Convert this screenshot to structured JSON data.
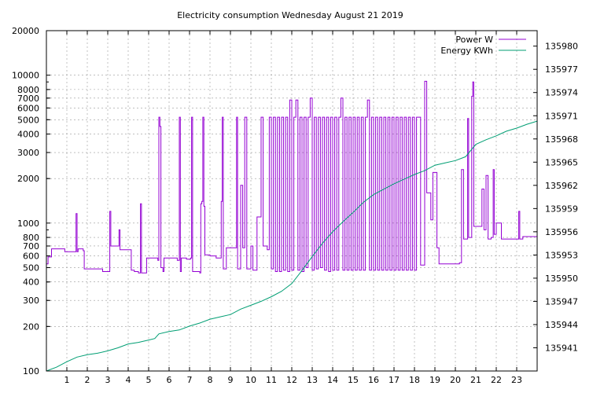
{
  "chart_data": {
    "type": "line",
    "title": "Electricity consumption Wednesday August 21 2019",
    "y_scale": "log",
    "ylim": [
      100,
      20000
    ],
    "y2lim": [
      135938,
      135982
    ],
    "xlim": [
      0,
      24
    ],
    "grid": true,
    "legend_position": "top-right",
    "x_ticks": [
      "1",
      "2",
      "3",
      "4",
      "5",
      "6",
      "7",
      "8",
      "9",
      "10",
      "11",
      "12",
      "13",
      "14",
      "15",
      "16",
      "17",
      "18",
      "19",
      "20",
      "21",
      "22",
      "23"
    ],
    "y_ticks": [
      {
        "v": 100,
        "label": "100"
      },
      {
        "v": 200,
        "label": "200"
      },
      {
        "v": 300,
        "label": "300"
      },
      {
        "v": 400,
        "label": "400"
      },
      {
        "v": 500,
        "label": "500"
      },
      {
        "v": 600,
        "label": "600"
      },
      {
        "v": 700,
        "label": "700"
      },
      {
        "v": 800,
        "label": "800"
      },
      {
        "v": 1000,
        "label": "1000"
      },
      {
        "v": 2000,
        "label": "2000"
      },
      {
        "v": 3000,
        "label": "3000"
      },
      {
        "v": 4000,
        "label": "4000"
      },
      {
        "v": 5000,
        "label": "5000"
      },
      {
        "v": 6000,
        "label": "6000"
      },
      {
        "v": 7000,
        "label": "7000"
      },
      {
        "v": 8000,
        "label": "8000"
      },
      {
        "v": 10000,
        "label": "10000"
      },
      {
        "v": 20000,
        "label": "20000"
      }
    ],
    "y2_ticks": [
      135941,
      135944,
      135947,
      135950,
      135953,
      135956,
      135959,
      135962,
      135965,
      135968,
      135971,
      135974,
      135977,
      135980
    ],
    "series": [
      {
        "name": "Power W",
        "color": "#9400d3",
        "axis": "y1",
        "points": [
          [
            0,
            530
          ],
          [
            0.08,
            590
          ],
          [
            0.25,
            670
          ],
          [
            0.9,
            640
          ],
          [
            1.3,
            640
          ],
          [
            1.45,
            1160
          ],
          [
            1.5,
            640
          ],
          [
            1.55,
            670
          ],
          [
            1.8,
            650
          ],
          [
            1.85,
            490
          ],
          [
            2.5,
            490
          ],
          [
            2.75,
            470
          ],
          [
            3.05,
            470
          ],
          [
            3.1,
            1200
          ],
          [
            3.15,
            700
          ],
          [
            3.3,
            700
          ],
          [
            3.55,
            900
          ],
          [
            3.6,
            660
          ],
          [
            4.05,
            660
          ],
          [
            4.15,
            480
          ],
          [
            4.3,
            470
          ],
          [
            4.5,
            460
          ],
          [
            4.6,
            1350
          ],
          [
            4.65,
            460
          ],
          [
            4.85,
            460
          ],
          [
            4.9,
            580
          ],
          [
            5.3,
            580
          ],
          [
            5.45,
            560
          ],
          [
            5.5,
            5200
          ],
          [
            5.55,
            4500
          ],
          [
            5.6,
            500
          ],
          [
            5.7,
            470
          ],
          [
            5.75,
            580
          ],
          [
            6.2,
            580
          ],
          [
            6.4,
            560
          ],
          [
            6.5,
            5200
          ],
          [
            6.55,
            470
          ],
          [
            6.6,
            580
          ],
          [
            6.85,
            570
          ],
          [
            7.05,
            580
          ],
          [
            7.1,
            5200
          ],
          [
            7.15,
            470
          ],
          [
            7.5,
            460
          ],
          [
            7.55,
            1350
          ],
          [
            7.6,
            1400
          ],
          [
            7.65,
            5200
          ],
          [
            7.7,
            1300
          ],
          [
            7.75,
            610
          ],
          [
            8.0,
            600
          ],
          [
            8.3,
            580
          ],
          [
            8.55,
            1400
          ],
          [
            8.6,
            5200
          ],
          [
            8.65,
            490
          ],
          [
            8.8,
            680
          ],
          [
            9.0,
            680
          ],
          [
            9.3,
            5200
          ],
          [
            9.35,
            490
          ],
          [
            9.5,
            1800
          ],
          [
            9.6,
            680
          ],
          [
            9.7,
            5200
          ],
          [
            9.8,
            490
          ],
          [
            10.0,
            700
          ],
          [
            10.1,
            480
          ],
          [
            10.3,
            1100
          ],
          [
            10.5,
            5200
          ],
          [
            10.6,
            700
          ],
          [
            10.8,
            660
          ],
          [
            10.9,
            5200
          ],
          [
            11.0,
            490
          ],
          [
            11.1,
            5200
          ],
          [
            11.2,
            470
          ],
          [
            11.3,
            5200
          ],
          [
            11.4,
            470
          ],
          [
            11.5,
            5200
          ],
          [
            11.6,
            480
          ],
          [
            11.7,
            5200
          ],
          [
            11.8,
            470
          ],
          [
            11.9,
            6800
          ],
          [
            12.0,
            480
          ],
          [
            12.1,
            5200
          ],
          [
            12.2,
            6800
          ],
          [
            12.3,
            480
          ],
          [
            12.4,
            5200
          ],
          [
            12.5,
            470
          ],
          [
            12.6,
            5200
          ],
          [
            12.7,
            500
          ],
          [
            12.8,
            5200
          ],
          [
            12.9,
            7000
          ],
          [
            13.0,
            480
          ],
          [
            13.1,
            5200
          ],
          [
            13.2,
            490
          ],
          [
            13.3,
            5200
          ],
          [
            13.4,
            500
          ],
          [
            13.5,
            5200
          ],
          [
            13.6,
            480
          ],
          [
            13.7,
            5200
          ],
          [
            13.8,
            470
          ],
          [
            13.9,
            5200
          ],
          [
            14.0,
            480
          ],
          [
            14.1,
            5200
          ],
          [
            14.2,
            480
          ],
          [
            14.3,
            5200
          ],
          [
            14.4,
            7000
          ],
          [
            14.5,
            480
          ],
          [
            14.6,
            5200
          ],
          [
            14.7,
            480
          ],
          [
            14.8,
            5200
          ],
          [
            14.9,
            480
          ],
          [
            15.0,
            5200
          ],
          [
            15.1,
            480
          ],
          [
            15.2,
            5200
          ],
          [
            15.3,
            480
          ],
          [
            15.4,
            5200
          ],
          [
            15.5,
            480
          ],
          [
            15.6,
            5200
          ],
          [
            15.7,
            6800
          ],
          [
            15.8,
            480
          ],
          [
            15.9,
            5200
          ],
          [
            16.0,
            480
          ],
          [
            16.1,
            5200
          ],
          [
            16.2,
            480
          ],
          [
            16.3,
            5200
          ],
          [
            16.4,
            480
          ],
          [
            16.5,
            5200
          ],
          [
            16.6,
            480
          ],
          [
            16.7,
            5200
          ],
          [
            16.8,
            480
          ],
          [
            16.9,
            5200
          ],
          [
            17.0,
            480
          ],
          [
            17.1,
            5200
          ],
          [
            17.2,
            480
          ],
          [
            17.3,
            5200
          ],
          [
            17.4,
            480
          ],
          [
            17.5,
            5200
          ],
          [
            17.6,
            480
          ],
          [
            17.7,
            5200
          ],
          [
            17.8,
            480
          ],
          [
            17.9,
            5200
          ],
          [
            18.0,
            480
          ],
          [
            18.1,
            5200
          ],
          [
            18.3,
            520
          ],
          [
            18.5,
            9100
          ],
          [
            18.6,
            1600
          ],
          [
            18.8,
            1050
          ],
          [
            18.9,
            2200
          ],
          [
            19.1,
            680
          ],
          [
            19.2,
            530
          ],
          [
            19.5,
            530
          ],
          [
            19.8,
            530
          ],
          [
            20.2,
            540
          ],
          [
            20.3,
            2300
          ],
          [
            20.4,
            780
          ],
          [
            20.6,
            5100
          ],
          [
            20.65,
            800
          ],
          [
            20.8,
            7200
          ],
          [
            20.85,
            9000
          ],
          [
            20.9,
            950
          ],
          [
            21.1,
            950
          ],
          [
            21.3,
            1700
          ],
          [
            21.4,
            900
          ],
          [
            21.5,
            2100
          ],
          [
            21.6,
            780
          ],
          [
            21.75,
            800
          ],
          [
            21.85,
            2300
          ],
          [
            21.9,
            840
          ],
          [
            22.0,
            1000
          ],
          [
            22.25,
            780
          ],
          [
            22.6,
            780
          ],
          [
            23.0,
            780
          ],
          [
            23.1,
            1200
          ],
          [
            23.15,
            780
          ],
          [
            23.3,
            810
          ],
          [
            24,
            810
          ]
        ]
      },
      {
        "name": "Energy KWh",
        "color": "#009e73",
        "axis": "y2",
        "points": [
          [
            0,
            135938
          ],
          [
            0.5,
            135938.5
          ],
          [
            1.0,
            135939.2
          ],
          [
            1.5,
            135939.8
          ],
          [
            2.0,
            135940.1
          ],
          [
            2.5,
            135940.3
          ],
          [
            3.0,
            135940.6
          ],
          [
            3.5,
            135941
          ],
          [
            4.0,
            135941.5
          ],
          [
            4.5,
            135941.7
          ],
          [
            5.0,
            135942
          ],
          [
            5.3,
            135942.2
          ],
          [
            5.5,
            135942.8
          ],
          [
            6.0,
            135943.1
          ],
          [
            6.5,
            135943.3
          ],
          [
            7.0,
            135943.8
          ],
          [
            7.5,
            135944.2
          ],
          [
            8.0,
            135944.7
          ],
          [
            8.5,
            135945
          ],
          [
            9.0,
            135945.3
          ],
          [
            9.5,
            135946
          ],
          [
            10.0,
            135946.5
          ],
          [
            10.5,
            135947
          ],
          [
            11.0,
            135947.6
          ],
          [
            11.5,
            135948.3
          ],
          [
            12.0,
            135949.3
          ],
          [
            12.5,
            135951
          ],
          [
            13.0,
            135952.8
          ],
          [
            13.5,
            135954.5
          ],
          [
            14.0,
            135956
          ],
          [
            14.5,
            135957.3
          ],
          [
            15.0,
            135958.5
          ],
          [
            15.5,
            135959.8
          ],
          [
            16.0,
            135960.8
          ],
          [
            16.5,
            135961.5
          ],
          [
            17.0,
            135962.2
          ],
          [
            17.5,
            135962.8
          ],
          [
            18.0,
            135963.4
          ],
          [
            18.5,
            135963.9
          ],
          [
            19.0,
            135964.6
          ],
          [
            19.5,
            135964.9
          ],
          [
            20.0,
            135965.2
          ],
          [
            20.5,
            135965.7
          ],
          [
            21.0,
            135967.3
          ],
          [
            21.5,
            135967.9
          ],
          [
            22.0,
            135968.4
          ],
          [
            22.5,
            135969
          ],
          [
            23.0,
            135969.4
          ],
          [
            23.5,
            135969.9
          ],
          [
            24,
            135970.3
          ]
        ]
      }
    ]
  }
}
